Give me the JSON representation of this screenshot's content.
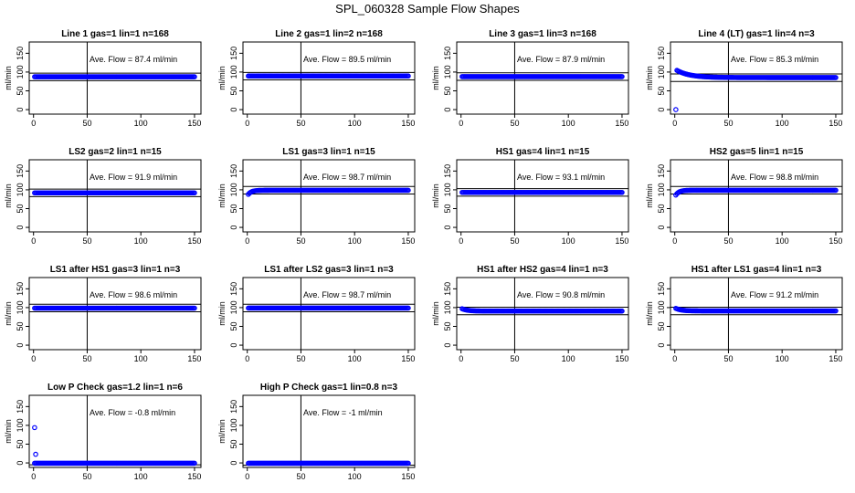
{
  "figure": {
    "title": "SPL_060328  Sample Flow Shapes"
  },
  "chart_data": [
    {
      "type": "scatter",
      "title": "Line 1 gas=1 lin=1 n=168",
      "ylabel": "ml/min",
      "annotation": "Ave. Flow =  87.4  ml/min",
      "xlim": [
        -4,
        156
      ],
      "ylim": [
        -12,
        180
      ],
      "xticks": [
        0,
        50,
        100,
        150
      ],
      "yticks": [
        0,
        50,
        100,
        150
      ],
      "vline": 50,
      "hlines": [
        77,
        97
      ],
      "points": {
        "x_start": 1,
        "x_end": 150,
        "shape": "flat",
        "level": 87.4
      }
    },
    {
      "type": "scatter",
      "title": "Line 2 gas=1 lin=2 n=168",
      "ylabel": "ml/min",
      "annotation": "Ave. Flow =  89.5  ml/min",
      "xlim": [
        -4,
        156
      ],
      "ylim": [
        -12,
        180
      ],
      "xticks": [
        0,
        50,
        100,
        150
      ],
      "yticks": [
        0,
        50,
        100,
        150
      ],
      "vline": 50,
      "hlines": [
        79,
        99
      ],
      "points": {
        "x_start": 1,
        "x_end": 150,
        "shape": "flat",
        "level": 89.5
      }
    },
    {
      "type": "scatter",
      "title": "Line 3 gas=1 lin=3 n=168",
      "ylabel": "ml/min",
      "annotation": "Ave. Flow =  87.9  ml/min",
      "xlim": [
        -4,
        156
      ],
      "ylim": [
        -12,
        180
      ],
      "xticks": [
        0,
        50,
        100,
        150
      ],
      "yticks": [
        0,
        50,
        100,
        150
      ],
      "vline": 50,
      "hlines": [
        78,
        98
      ],
      "points": {
        "x_start": 1,
        "x_end": 150,
        "shape": "flat",
        "level": 87.9
      }
    },
    {
      "type": "scatter",
      "title": "Line 4 (LT) gas=1 lin=4 n=3",
      "ylabel": "ml/min",
      "annotation": "Ave. Flow =  85.3  ml/min",
      "xlim": [
        -4,
        156
      ],
      "ylim": [
        -12,
        180
      ],
      "xticks": [
        0,
        50,
        100,
        150
      ],
      "yticks": [
        0,
        50,
        100,
        150
      ],
      "vline": 50,
      "hlines": [
        75,
        95
      ],
      "points": {
        "x_start": 1,
        "x_end": 150,
        "shape": "overshoot_decay",
        "level": 85.3,
        "start": 0,
        "peak": 103
      }
    },
    {
      "type": "scatter",
      "title": "LS2 gas=2 lin=1 n=15",
      "ylabel": "ml/min",
      "annotation": "Ave. Flow =  91.9  ml/min",
      "xlim": [
        -4,
        156
      ],
      "ylim": [
        -12,
        180
      ],
      "xticks": [
        0,
        50,
        100,
        150
      ],
      "yticks": [
        0,
        50,
        100,
        150
      ],
      "vline": 50,
      "hlines": [
        82,
        102
      ],
      "points": {
        "x_start": 1,
        "x_end": 150,
        "shape": "flat",
        "level": 91.9
      }
    },
    {
      "type": "scatter",
      "title": "LS1 gas=3 lin=1 n=15",
      "ylabel": "ml/min",
      "annotation": "Ave. Flow =  98.7  ml/min",
      "xlim": [
        -4,
        156
      ],
      "ylim": [
        -12,
        180
      ],
      "xticks": [
        0,
        50,
        100,
        150
      ],
      "yticks": [
        0,
        50,
        100,
        150
      ],
      "vline": 50,
      "hlines": [
        89,
        109
      ],
      "points": {
        "x_start": 1,
        "x_end": 150,
        "shape": "rise",
        "level": 98.7,
        "start": 88
      }
    },
    {
      "type": "scatter",
      "title": "HS1 gas=4 lin=1 n=15",
      "ylabel": "ml/min",
      "annotation": "Ave. Flow =  93.1  ml/min",
      "xlim": [
        -4,
        156
      ],
      "ylim": [
        -12,
        180
      ],
      "xticks": [
        0,
        50,
        100,
        150
      ],
      "yticks": [
        0,
        50,
        100,
        150
      ],
      "vline": 50,
      "hlines": [
        83,
        103
      ],
      "points": {
        "x_start": 1,
        "x_end": 150,
        "shape": "flat",
        "level": 93.1
      }
    },
    {
      "type": "scatter",
      "title": "HS2 gas=5 lin=1 n=15",
      "ylabel": "ml/min",
      "annotation": "Ave. Flow =  98.8  ml/min",
      "xlim": [
        -4,
        156
      ],
      "ylim": [
        -12,
        180
      ],
      "xticks": [
        0,
        50,
        100,
        150
      ],
      "yticks": [
        0,
        50,
        100,
        150
      ],
      "vline": 50,
      "hlines": [
        89,
        109
      ],
      "points": {
        "x_start": 1,
        "x_end": 150,
        "shape": "rise",
        "level": 98.8,
        "start": 86
      }
    },
    {
      "type": "scatter",
      "title": "LS1 after HS1 gas=3 lin=1 n=3",
      "ylabel": "ml/min",
      "annotation": "Ave. Flow =  98.6  ml/min",
      "xlim": [
        -4,
        156
      ],
      "ylim": [
        -12,
        180
      ],
      "xticks": [
        0,
        50,
        100,
        150
      ],
      "yticks": [
        0,
        50,
        100,
        150
      ],
      "vline": 50,
      "hlines": [
        89,
        109
      ],
      "points": {
        "x_start": 1,
        "x_end": 150,
        "shape": "flat",
        "level": 98.6
      }
    },
    {
      "type": "scatter",
      "title": "LS1 after LS2 gas=3 lin=1 n=3",
      "ylabel": "ml/min",
      "annotation": "Ave. Flow =  98.7  ml/min",
      "xlim": [
        -4,
        156
      ],
      "ylim": [
        -12,
        180
      ],
      "xticks": [
        0,
        50,
        100,
        150
      ],
      "yticks": [
        0,
        50,
        100,
        150
      ],
      "vline": 50,
      "hlines": [
        89,
        109
      ],
      "points": {
        "x_start": 1,
        "x_end": 150,
        "shape": "flat",
        "level": 98.7
      }
    },
    {
      "type": "scatter",
      "title": "HS1 after HS2 gas=4 lin=1 n=3",
      "ylabel": "ml/min",
      "annotation": "Ave. Flow =  90.8  ml/min",
      "xlim": [
        -4,
        156
      ],
      "ylim": [
        -12,
        180
      ],
      "xticks": [
        0,
        50,
        100,
        150
      ],
      "yticks": [
        0,
        50,
        100,
        150
      ],
      "vline": 50,
      "hlines": [
        81,
        101
      ],
      "points": {
        "x_start": 1,
        "x_end": 150,
        "shape": "decay",
        "level": 90.8,
        "start": 97
      }
    },
    {
      "type": "scatter",
      "title": "HS1 after LS1 gas=4 lin=1 n=3",
      "ylabel": "ml/min",
      "annotation": "Ave. Flow =  91.2  ml/min",
      "xlim": [
        -4,
        156
      ],
      "ylim": [
        -12,
        180
      ],
      "xticks": [
        0,
        50,
        100,
        150
      ],
      "yticks": [
        0,
        50,
        100,
        150
      ],
      "vline": 50,
      "hlines": [
        81,
        101
      ],
      "points": {
        "x_start": 1,
        "x_end": 150,
        "shape": "decay",
        "level": 91.2,
        "start": 98
      }
    },
    {
      "type": "scatter",
      "title": "Low P Check gas=1.2 lin=1 n=6",
      "ylabel": "ml/min",
      "annotation": "Ave. Flow =  -0.8  ml/min",
      "xlim": [
        -4,
        156
      ],
      "ylim": [
        -12,
        180
      ],
      "xticks": [
        0,
        50,
        100,
        150
      ],
      "yticks": [
        0,
        50,
        100,
        150
      ],
      "vline": 50,
      "hlines": [
        -5
      ],
      "points": {
        "x_start": 1,
        "x_end": 150,
        "shape": "flat",
        "level": -0.8,
        "extra": [
          [
            1,
            94
          ],
          [
            2,
            23
          ]
        ]
      }
    },
    {
      "type": "scatter",
      "title": "High P Check gas=1 lin=0.8 n=3",
      "ylabel": "ml/min",
      "annotation": "Ave. Flow =  -1  ml/min",
      "xlim": [
        -4,
        156
      ],
      "ylim": [
        -12,
        180
      ],
      "xticks": [
        0,
        50,
        100,
        150
      ],
      "yticks": [
        0,
        50,
        100,
        150
      ],
      "vline": 50,
      "hlines": [
        -6
      ],
      "points": {
        "x_start": 1,
        "x_end": 150,
        "shape": "flat",
        "level": -1
      }
    }
  ],
  "colors": {
    "points": "#0000ff",
    "axes": "#000000"
  }
}
